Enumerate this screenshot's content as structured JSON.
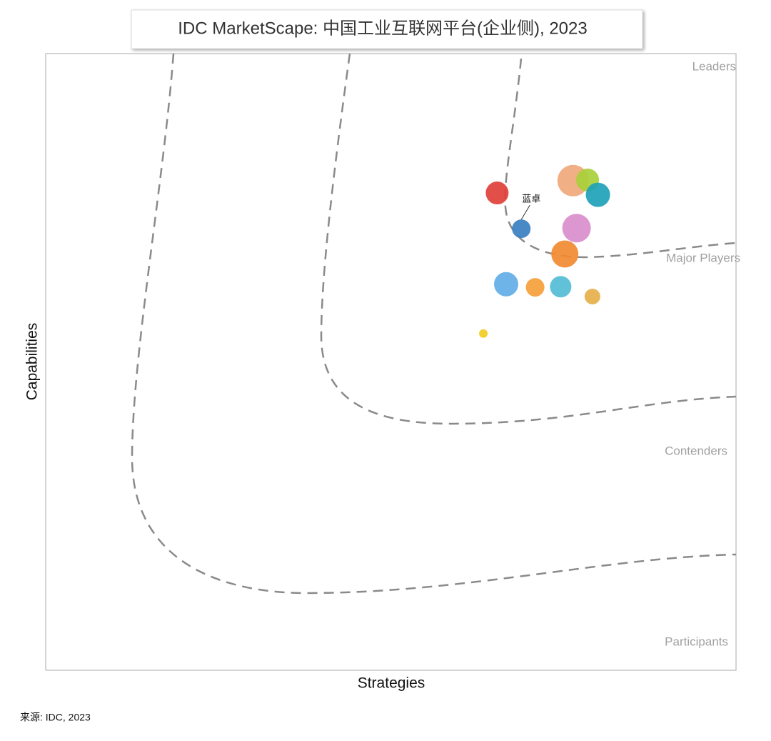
{
  "chart_data": {
    "type": "bubble",
    "title": "IDC MarketScape: 中国工业互联网平台(企业侧), 2023",
    "x_label": "Strategies",
    "y_label": "Capabilities",
    "zones": [
      "Leaders",
      "Major Players",
      "Contenders",
      "Participants"
    ],
    "source": "来源: IDC, 2023",
    "xlim": [
      0,
      100
    ],
    "ylim": [
      0,
      100
    ],
    "x": [
      65.4,
      68.9,
      76.4,
      78.5,
      80.0,
      76.9,
      75.2,
      66.7,
      70.9,
      74.6,
      79.2,
      63.4
    ],
    "y": [
      77.4,
      71.6,
      79.4,
      79.5,
      77.1,
      71.7,
      67.5,
      62.6,
      62.1,
      62.2,
      60.6,
      54.6
    ],
    "sizes": [
      16,
      13,
      22,
      16,
      17,
      20,
      19,
      17,
      13,
      15,
      11,
      6
    ],
    "colors": [
      "#e0403a",
      "#3a7fc1",
      "#efa87a",
      "#a8cf3a",
      "#1ea1b8",
      "#d98ecc",
      "#f08a30",
      "#63aee6",
      "#f5a03a",
      "#52bcd6",
      "#e6b04a",
      "#f2cc22"
    ],
    "labels": [
      null,
      "蓝卓",
      null,
      null,
      null,
      null,
      null,
      null,
      null,
      null,
      null,
      null
    ]
  }
}
